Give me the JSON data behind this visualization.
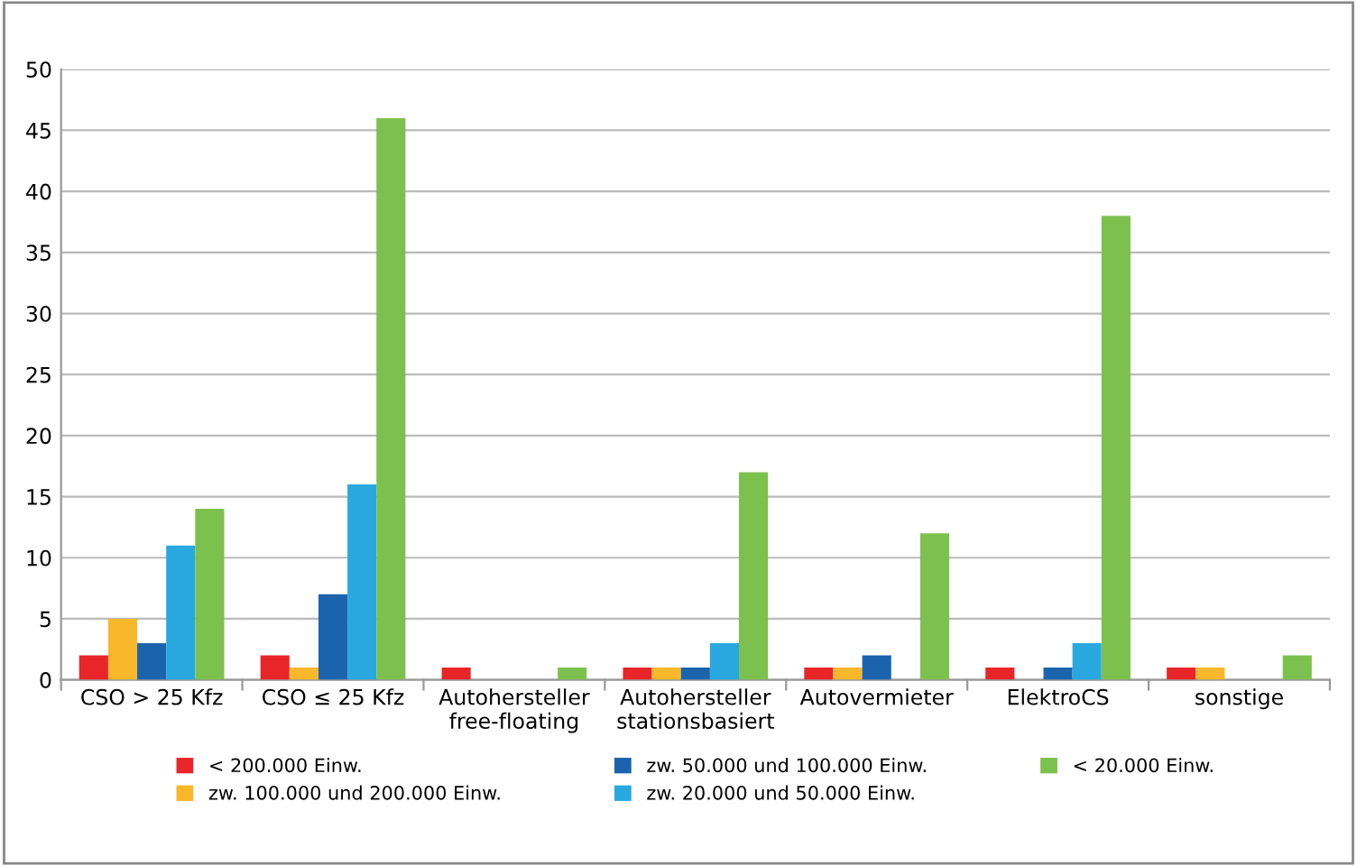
{
  "chart_data": {
    "type": "bar",
    "categories": [
      "CSO > 25 Kfz",
      "CSO ≤ 25 Kfz",
      "Autohersteller\nfree-floating",
      "Autohersteller\nstationsbasiert",
      "Autovermieter",
      "ElektroCS",
      "sonstige"
    ],
    "series": [
      {
        "name": "< 200.000 Einw.",
        "color": "#e8262a",
        "values": [
          2,
          2,
          1,
          1,
          1,
          1,
          1
        ]
      },
      {
        "name": "zw. 100.000 und 200.000 Einw.",
        "color": "#f9b72b",
        "values": [
          5,
          1,
          0,
          1,
          1,
          0,
          1
        ]
      },
      {
        "name": "zw. 50.000 und 100.000 Einw.",
        "color": "#1b64ad",
        "values": [
          3,
          7,
          0,
          1,
          2,
          1,
          0
        ]
      },
      {
        "name": "zw. 20.000 und 50.000 Einw.",
        "color": "#29a8e0",
        "values": [
          11,
          16,
          0,
          3,
          0,
          3,
          0
        ]
      },
      {
        "name": "< 20.000 Einw.",
        "color": "#7cc14e",
        "values": [
          14,
          46,
          1,
          17,
          12,
          38,
          2
        ]
      }
    ],
    "ylim": [
      0,
      50
    ],
    "yticks": [
      0,
      5,
      10,
      15,
      20,
      25,
      30,
      35,
      40,
      45,
      50
    ],
    "grid": "y",
    "legend": "bottom"
  }
}
